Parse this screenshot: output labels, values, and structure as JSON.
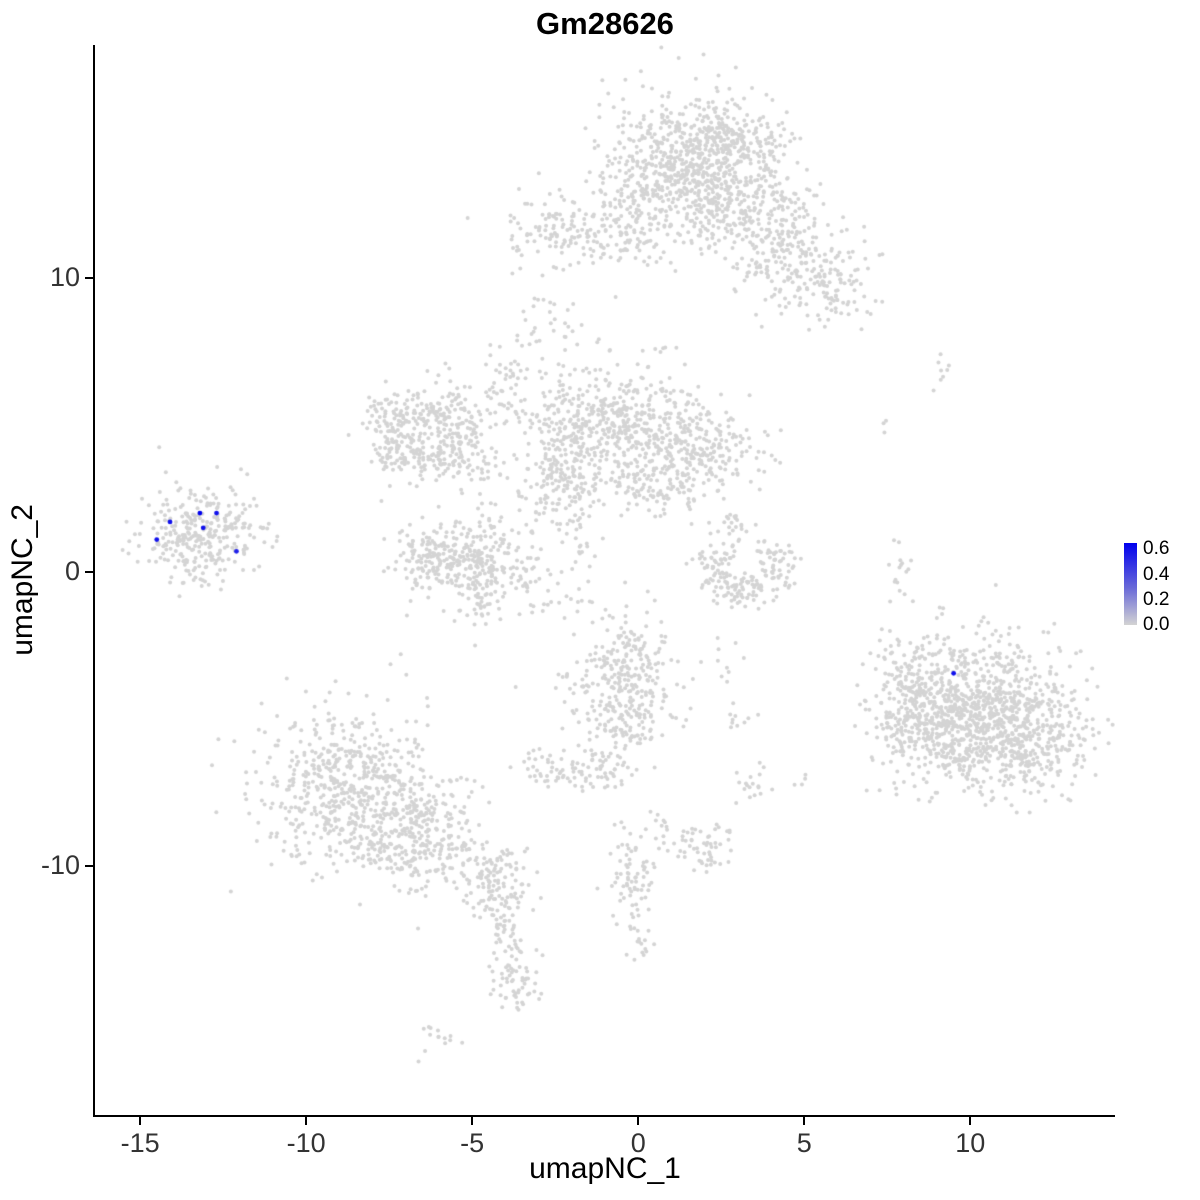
{
  "chart_data": {
    "type": "scatter",
    "title": "Gm28626",
    "xlabel": "umapNC_1",
    "ylabel": "umapNC_2",
    "xlim": [
      -16.36,
      14.36
    ],
    "ylim": [
      -18.47,
      17.92
    ],
    "grid": false,
    "x_ticks": [
      {
        "value": -15,
        "label": "-15"
      },
      {
        "value": -10,
        "label": "-10"
      },
      {
        "value": -5,
        "label": "-5"
      },
      {
        "value": 0,
        "label": "0"
      },
      {
        "value": 5,
        "label": "5"
      },
      {
        "value": 10,
        "label": "10"
      }
    ],
    "y_ticks": [
      {
        "value": 10,
        "label": "10"
      },
      {
        "value": 0,
        "label": "0"
      },
      {
        "value": -10,
        "label": "-10"
      }
    ],
    "legend": {
      "position": "right",
      "ticks": [
        {
          "value": 0.6,
          "label": "0.6"
        },
        {
          "value": 0.4,
          "label": "0.4"
        },
        {
          "value": 0.2,
          "label": "0.2"
        },
        {
          "value": 0.0,
          "label": "0.0"
        }
      ],
      "max_value": 0.65,
      "min_color": "#D3D3D3",
      "mid_color": "#6A6AD8",
      "max_color": "#0000EE"
    },
    "colors": {
      "point": "#D4D4D4",
      "axis": "#000000",
      "tick_text": "#333333"
    },
    "point_radius": 2.0,
    "clusters": [
      [
        1.6,
        13.9,
        1.25,
        1.2,
        650
      ],
      [
        3.2,
        12.3,
        1.1,
        0.9,
        250
      ],
      [
        4.6,
        10.6,
        0.9,
        0.8,
        160
      ],
      [
        5.7,
        9.6,
        0.6,
        0.6,
        60
      ],
      [
        -2.2,
        11.6,
        0.9,
        0.55,
        130
      ],
      [
        -0.6,
        11.4,
        0.7,
        0.5,
        60
      ],
      [
        0.3,
        12.8,
        0.6,
        0.9,
        90
      ],
      [
        -2.7,
        9.2,
        0.4,
        0.7,
        16
      ],
      [
        6.2,
        10.0,
        0.5,
        0.7,
        28
      ],
      [
        2.9,
        14.9,
        0.8,
        0.5,
        90
      ],
      [
        -7.2,
        5.2,
        0.55,
        0.5,
        90
      ],
      [
        -6.0,
        5.4,
        0.55,
        0.45,
        90
      ],
      [
        -5.3,
        4.6,
        0.45,
        0.5,
        70
      ],
      [
        -6.3,
        3.9,
        0.6,
        0.45,
        90
      ],
      [
        -7.3,
        4.1,
        0.45,
        0.45,
        60
      ],
      [
        -4.9,
        3.4,
        0.35,
        0.45,
        25
      ],
      [
        -4.3,
        5.6,
        0.3,
        0.5,
        20
      ],
      [
        -3.9,
        6.9,
        0.3,
        0.5,
        22
      ],
      [
        -3.3,
        8.1,
        0.25,
        0.4,
        10
      ],
      [
        -0.9,
        4.9,
        1.35,
        1.1,
        540
      ],
      [
        1.8,
        4.1,
        0.9,
        0.85,
        260
      ],
      [
        -2.3,
        3.0,
        0.75,
        0.6,
        120
      ],
      [
        -2.0,
        1.7,
        0.4,
        0.5,
        24
      ],
      [
        0.3,
        2.9,
        0.5,
        0.45,
        50
      ],
      [
        -5.0,
        0.3,
        1.0,
        0.75,
        320
      ],
      [
        -6.3,
        0.5,
        0.5,
        0.5,
        70
      ],
      [
        -4.6,
        -1.3,
        0.4,
        0.35,
        22
      ],
      [
        2.4,
        0.3,
        0.35,
        0.55,
        60
      ],
      [
        3.2,
        -0.6,
        0.45,
        0.35,
        70
      ],
      [
        4.1,
        0.3,
        0.35,
        0.55,
        60
      ],
      [
        2.9,
        1.6,
        0.3,
        0.3,
        20
      ],
      [
        -13.2,
        1.2,
        0.85,
        0.8,
        300
      ],
      [
        -12.0,
        1.9,
        0.3,
        0.35,
        18
      ],
      [
        -11.1,
        1.3,
        0.25,
        0.3,
        7
      ],
      [
        -8.7,
        -7.3,
        1.3,
        1.4,
        600
      ],
      [
        -6.6,
        -8.9,
        1.0,
        0.9,
        280
      ],
      [
        -4.4,
        -10.6,
        0.6,
        0.6,
        130
      ],
      [
        -4.0,
        -12.4,
        0.3,
        0.6,
        40
      ],
      [
        -3.7,
        -13.9,
        0.4,
        0.5,
        55
      ],
      [
        -5.9,
        -15.9,
        0.4,
        0.3,
        14
      ],
      [
        -0.4,
        -3.6,
        0.8,
        1.0,
        280
      ],
      [
        -0.5,
        -5.4,
        0.5,
        0.4,
        60
      ],
      [
        -1.1,
        -6.8,
        0.45,
        0.4,
        55
      ],
      [
        -2.6,
        -6.7,
        0.4,
        0.35,
        45
      ],
      [
        10.2,
        -4.3,
        1.5,
        1.1,
        700
      ],
      [
        11.3,
        -5.8,
        1.3,
        0.9,
        450
      ],
      [
        8.6,
        -5.6,
        0.8,
        0.9,
        180
      ],
      [
        8.2,
        -3.4,
        0.5,
        0.6,
        60
      ],
      [
        7.9,
        0.2,
        0.2,
        0.55,
        16
      ],
      [
        9.2,
        6.8,
        0.25,
        0.45,
        8
      ],
      [
        7.6,
        4.9,
        0.15,
        0.2,
        3
      ],
      [
        2.1,
        -9.4,
        0.5,
        0.4,
        55
      ],
      [
        -0.2,
        -10.6,
        0.35,
        0.8,
        70
      ],
      [
        0.0,
        -12.4,
        0.25,
        0.5,
        20
      ],
      [
        0.8,
        -8.8,
        0.3,
        0.3,
        12
      ],
      [
        3.3,
        -7.3,
        0.3,
        0.3,
        18
      ],
      [
        2.6,
        -2.9,
        0.25,
        0.3,
        10
      ],
      [
        3.0,
        -5.0,
        0.3,
        0.3,
        10
      ],
      [
        5.0,
        -7.0,
        0.2,
        0.2,
        4
      ],
      [
        -1.7,
        -1.2,
        0.4,
        0.5,
        10
      ],
      [
        -3.0,
        -1.0,
        0.3,
        0.3,
        6
      ],
      [
        -1.8,
        0.5,
        0.3,
        0.5,
        12
      ],
      [
        -1.5,
        8.3,
        0.5,
        0.5,
        8
      ]
    ],
    "expressing_cells": [
      [
        -14.5,
        1.1,
        0.6
      ],
      [
        -14.1,
        1.7,
        0.6
      ],
      [
        -13.2,
        2.0,
        0.65
      ],
      [
        -13.1,
        1.5,
        0.6
      ],
      [
        -12.7,
        2.0,
        0.6
      ],
      [
        -12.1,
        0.7,
        0.55
      ],
      [
        9.5,
        -3.45,
        0.6
      ]
    ]
  }
}
